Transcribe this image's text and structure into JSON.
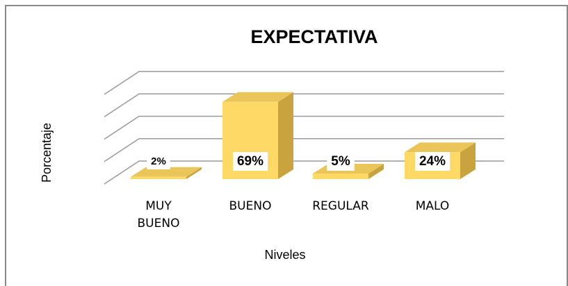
{
  "chart_data": {
    "type": "bar3d",
    "title": "EXPECTATIVA",
    "x_label": "Niveles",
    "y_label": "Porcentaje",
    "categories": [
      "MUY BUENO",
      "BUENO",
      "REGULAR",
      "MALO"
    ],
    "values": [
      2,
      69,
      5,
      24
    ],
    "value_labels": [
      "2%",
      "69%",
      "5%",
      "24%"
    ],
    "color": "#ffd966",
    "ylim": [
      0,
      80
    ],
    "yticks": [
      0,
      20,
      40,
      60,
      80
    ],
    "grid": true
  }
}
